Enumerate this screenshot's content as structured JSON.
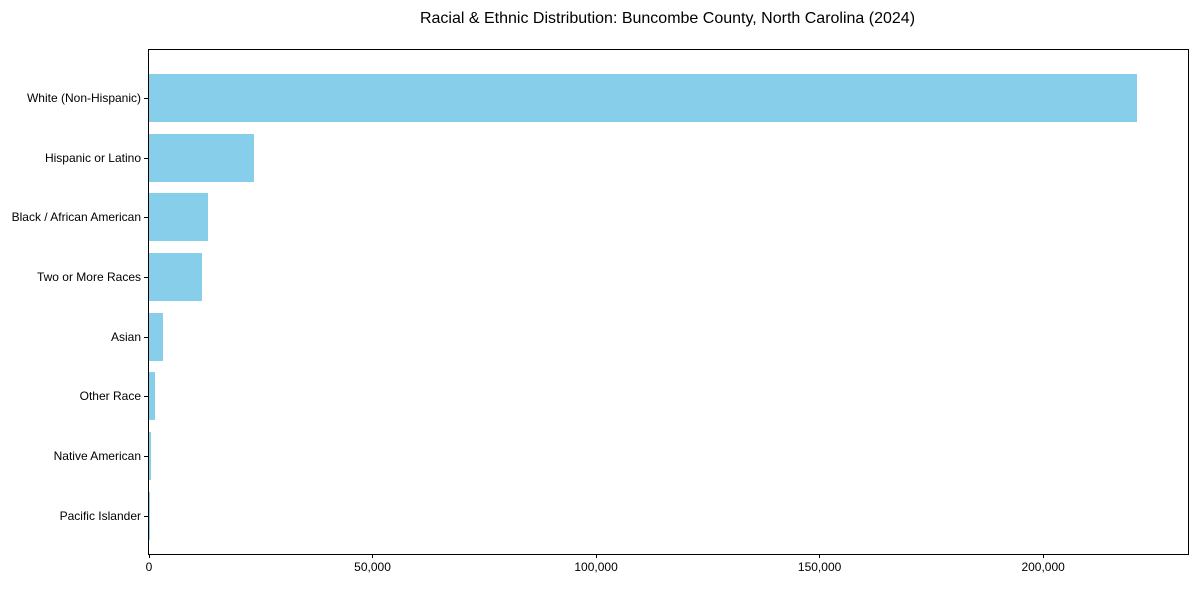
{
  "chart_data": {
    "type": "bar",
    "orientation": "horizontal",
    "title": "Racial & Ethnic Distribution: Buncombe County, North Carolina (2024)",
    "categories": [
      "White (Non-Hispanic)",
      "Hispanic or Latino",
      "Black / African American",
      "Two or More Races",
      "Asian",
      "Other Race",
      "Native American",
      "Pacific Islander"
    ],
    "values": [
      221000,
      23500,
      13200,
      11900,
      3100,
      1300,
      400,
      100
    ],
    "bar_color": "#87CEEB",
    "xlabel": "",
    "ylabel": "",
    "xlim": [
      0,
      232400
    ],
    "xticks": [
      0,
      50000,
      100000,
      150000,
      200000
    ],
    "xtick_labels": [
      "0",
      "50,000",
      "100,000",
      "150,000",
      "200,000"
    ],
    "grid": false,
    "legend": null
  }
}
